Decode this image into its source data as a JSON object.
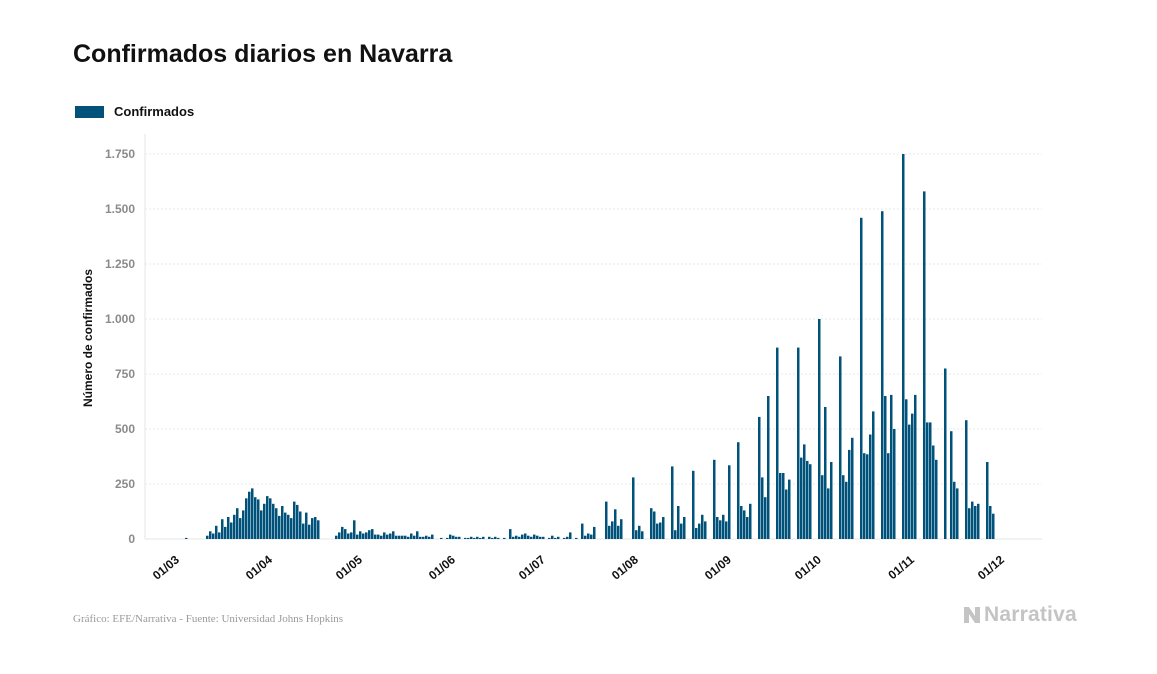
{
  "title": "Confirmados diarios en Navarra",
  "legend": {
    "label": "Confirmados",
    "color": "#00527a"
  },
  "footer": {
    "credit": "Gráfico: EFE/Narrativa - Fuente: Universidad Johns Hopkins"
  },
  "brand": {
    "name": "Narrativa",
    "icon": "narrativa-logo-icon"
  },
  "chart_data": {
    "type": "bar",
    "ylabel": "Número de confirmados",
    "xlabel": "",
    "ylim": [
      0,
      1750
    ],
    "yticks": [
      0,
      250,
      500,
      750,
      1000,
      1250,
      1500,
      1750
    ],
    "ytick_labels": [
      "0",
      "250",
      "500",
      "750",
      "1.000",
      "1.250",
      "1.500",
      "1.750"
    ],
    "x_start": "2020-03-01",
    "xticks": [
      "01/03",
      "01/04",
      "01/05",
      "01/06",
      "01/07",
      "01/08",
      "01/09",
      "01/10",
      "01/11",
      "01/12"
    ],
    "grid": true,
    "series": [
      {
        "name": "Confirmados",
        "color": "#00527a",
        "values": [
          0,
          0,
          0,
          0,
          0,
          0,
          0,
          0,
          0,
          0,
          0,
          5,
          0,
          0,
          0,
          0,
          0,
          0,
          15,
          35,
          25,
          60,
          30,
          90,
          55,
          100,
          75,
          110,
          140,
          95,
          130,
          185,
          215,
          230,
          190,
          180,
          130,
          160,
          195,
          185,
          160,
          140,
          105,
          150,
          120,
          110,
          95,
          170,
          155,
          125,
          70,
          120,
          65,
          95,
          100,
          85,
          0,
          0,
          0,
          0,
          0,
          15,
          30,
          55,
          45,
          25,
          30,
          85,
          20,
          35,
          25,
          30,
          40,
          45,
          20,
          20,
          15,
          30,
          20,
          25,
          35,
          15,
          15,
          15,
          15,
          10,
          25,
          15,
          35,
          10,
          10,
          15,
          10,
          20,
          0,
          0,
          5,
          0,
          5,
          20,
          15,
          10,
          10,
          0,
          5,
          5,
          10,
          5,
          10,
          5,
          10,
          0,
          10,
          5,
          10,
          5,
          0,
          5,
          0,
          45,
          10,
          15,
          10,
          20,
          25,
          15,
          10,
          20,
          15,
          10,
          10,
          0,
          5,
          15,
          5,
          10,
          0,
          5,
          10,
          30,
          0,
          5,
          0,
          70,
          15,
          25,
          20,
          55,
          0,
          0,
          0,
          170,
          60,
          80,
          135,
          60,
          90,
          0,
          0,
          0,
          280,
          40,
          60,
          35,
          0,
          0,
          140,
          125,
          70,
          75,
          100,
          0,
          0,
          330,
          40,
          150,
          70,
          100,
          0,
          0,
          310,
          50,
          70,
          110,
          80,
          0,
          0,
          360,
          100,
          85,
          110,
          80,
          335,
          0,
          0,
          440,
          150,
          130,
          100,
          160,
          0,
          0,
          555,
          280,
          190,
          650,
          0,
          0,
          870,
          300,
          300,
          225,
          270,
          0,
          0,
          870,
          370,
          430,
          355,
          340,
          0,
          0,
          1000,
          290,
          600,
          230,
          350,
          0,
          0,
          830,
          290,
          260,
          405,
          460,
          0,
          0,
          1460,
          390,
          385,
          475,
          580,
          0,
          0,
          1490,
          650,
          390,
          655,
          500,
          0,
          0,
          1750,
          635,
          520,
          570,
          655,
          0,
          0,
          1580,
          530,
          530,
          425,
          360,
          0,
          0,
          775,
          0,
          490,
          260,
          230,
          0,
          0,
          540,
          140,
          170,
          150,
          160,
          0,
          0,
          350,
          150,
          115
        ]
      }
    ]
  }
}
